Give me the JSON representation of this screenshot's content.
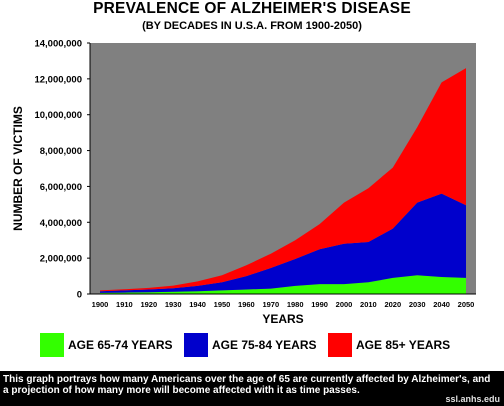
{
  "header": {
    "title": "PREVALENCE OF ALZHEIMER'S DISEASE",
    "subtitle": "(BY DECADES IN U.S.A. FROM 1900-2050)"
  },
  "chart_data": {
    "type": "area",
    "stacked": true,
    "title": "PREVALENCE OF ALZHEIMER'S DISEASE",
    "subtitle": "(BY DECADES IN U.S.A. FROM 1900-2050)",
    "xlabel": "YEARS",
    "ylabel": "NUMBER OF VICTIMS",
    "x": [
      1900,
      1910,
      1920,
      1930,
      1940,
      1950,
      1960,
      1970,
      1980,
      1990,
      2000,
      2010,
      2020,
      2030,
      2040,
      2050
    ],
    "x_tick_labels": [
      "1900",
      "1910",
      "1920",
      "1930",
      "1940",
      "1950",
      "1960",
      "1970",
      "1980",
      "1990",
      "2000",
      "2010",
      "2020",
      "2030",
      "2040",
      "2050"
    ],
    "ylim": [
      0,
      14000000
    ],
    "y_ticks": [
      0,
      2000000,
      4000000,
      6000000,
      8000000,
      10000000,
      12000000,
      14000000
    ],
    "y_tick_labels": [
      "0",
      "2,000,000",
      "4,000,000",
      "6,000,000",
      "8,000,000",
      "10,000,000",
      "12,000,000",
      "14,000,000"
    ],
    "grid": false,
    "plot_background": "#808080",
    "legend_position": "bottom",
    "series": [
      {
        "name": "AGE 65-74 YEARS",
        "color": "#33ff00",
        "values": [
          60000,
          80000,
          100000,
          120000,
          150000,
          200000,
          250000,
          300000,
          450000,
          550000,
          550000,
          650000,
          900000,
          1050000,
          950000,
          900000
        ]
      },
      {
        "name": "AGE 75-84 YEARS",
        "color": "#0000cc",
        "values": [
          90000,
          120000,
          150000,
          200000,
          300000,
          450000,
          750000,
          1150000,
          1500000,
          1950000,
          2250000,
          2250000,
          2750000,
          4050000,
          4650000,
          4050000
        ]
      },
      {
        "name": "AGE 85+ YEARS",
        "color": "#ff0000",
        "values": [
          50000,
          60000,
          90000,
          150000,
          250000,
          400000,
          600000,
          800000,
          1050000,
          1400000,
          2300000,
          3000000,
          3400000,
          4200000,
          6200000,
          7650000
        ]
      }
    ]
  },
  "legend": {
    "items": [
      {
        "label": "AGE 65-74 YEARS",
        "color": "#33ff00"
      },
      {
        "label": "AGE 75-84 YEARS",
        "color": "#0000cc"
      },
      {
        "label": "AGE 85+ YEARS",
        "color": "#ff0000"
      }
    ]
  },
  "caption": {
    "text": "This graph portrays how many Americans over the age of 65 are currently affected by Alzheimer's, and a projection of how many more will become affected with it as time passes.",
    "watermark": "ssl.anhs.edu"
  }
}
